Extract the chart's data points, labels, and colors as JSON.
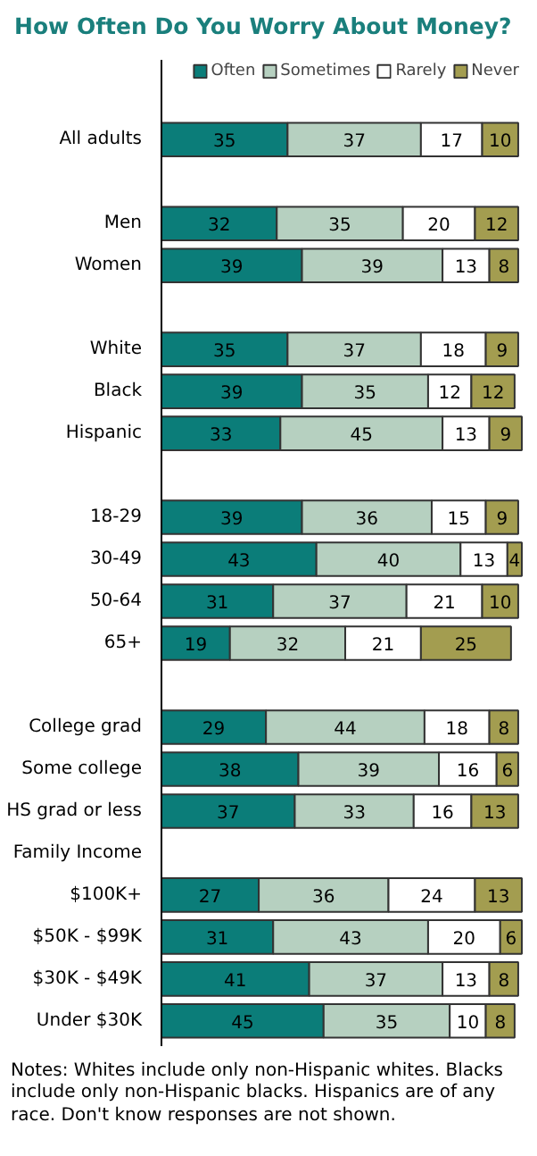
{
  "chart_data": {
    "type": "bar",
    "orientation": "horizontal",
    "stacked": true,
    "data_labels": true,
    "legend": "top",
    "grid": false,
    "title": "How Often Do You Worry About Money?",
    "categories": [
      "All adults",
      null,
      "Men",
      "Women",
      null,
      "White",
      "Black",
      "Hispanic",
      null,
      "18-29",
      "30-49",
      "50-64",
      "65+",
      null,
      "College grad",
      "Some college",
      "HS grad or less",
      "Family Income",
      "$100K+",
      "$50K - $99K",
      "$30K - $49K",
      "Under $30K"
    ],
    "series": [
      {
        "name": "Often",
        "color": "#0b7d79",
        "values": [
          35,
          null,
          32,
          39,
          null,
          35,
          39,
          33,
          null,
          39,
          43,
          31,
          19,
          null,
          29,
          38,
          37,
          null,
          27,
          31,
          41,
          45
        ]
      },
      {
        "name": "Sometimes",
        "color": "#b6d0c0",
        "values": [
          37,
          null,
          35,
          39,
          null,
          37,
          35,
          45,
          null,
          36,
          40,
          37,
          32,
          null,
          44,
          39,
          33,
          null,
          36,
          43,
          37,
          35
        ]
      },
      {
        "name": "Rarely",
        "color": "#ffffff",
        "values": [
          17,
          null,
          20,
          13,
          null,
          18,
          12,
          13,
          null,
          15,
          13,
          21,
          21,
          null,
          18,
          16,
          16,
          null,
          24,
          20,
          13,
          10
        ]
      },
      {
        "name": "Never",
        "color": "#a39d50",
        "values": [
          10,
          null,
          12,
          8,
          null,
          9,
          12,
          9,
          null,
          9,
          4,
          10,
          25,
          null,
          8,
          6,
          13,
          null,
          13,
          6,
          8,
          8
        ]
      }
    ],
    "annotations": [
      "Notes: Whites include only non-Hispanic whites. Blacks include only non-Hispanic blacks. Hispanics are of any race. Don't know responses are not shown."
    ]
  }
}
